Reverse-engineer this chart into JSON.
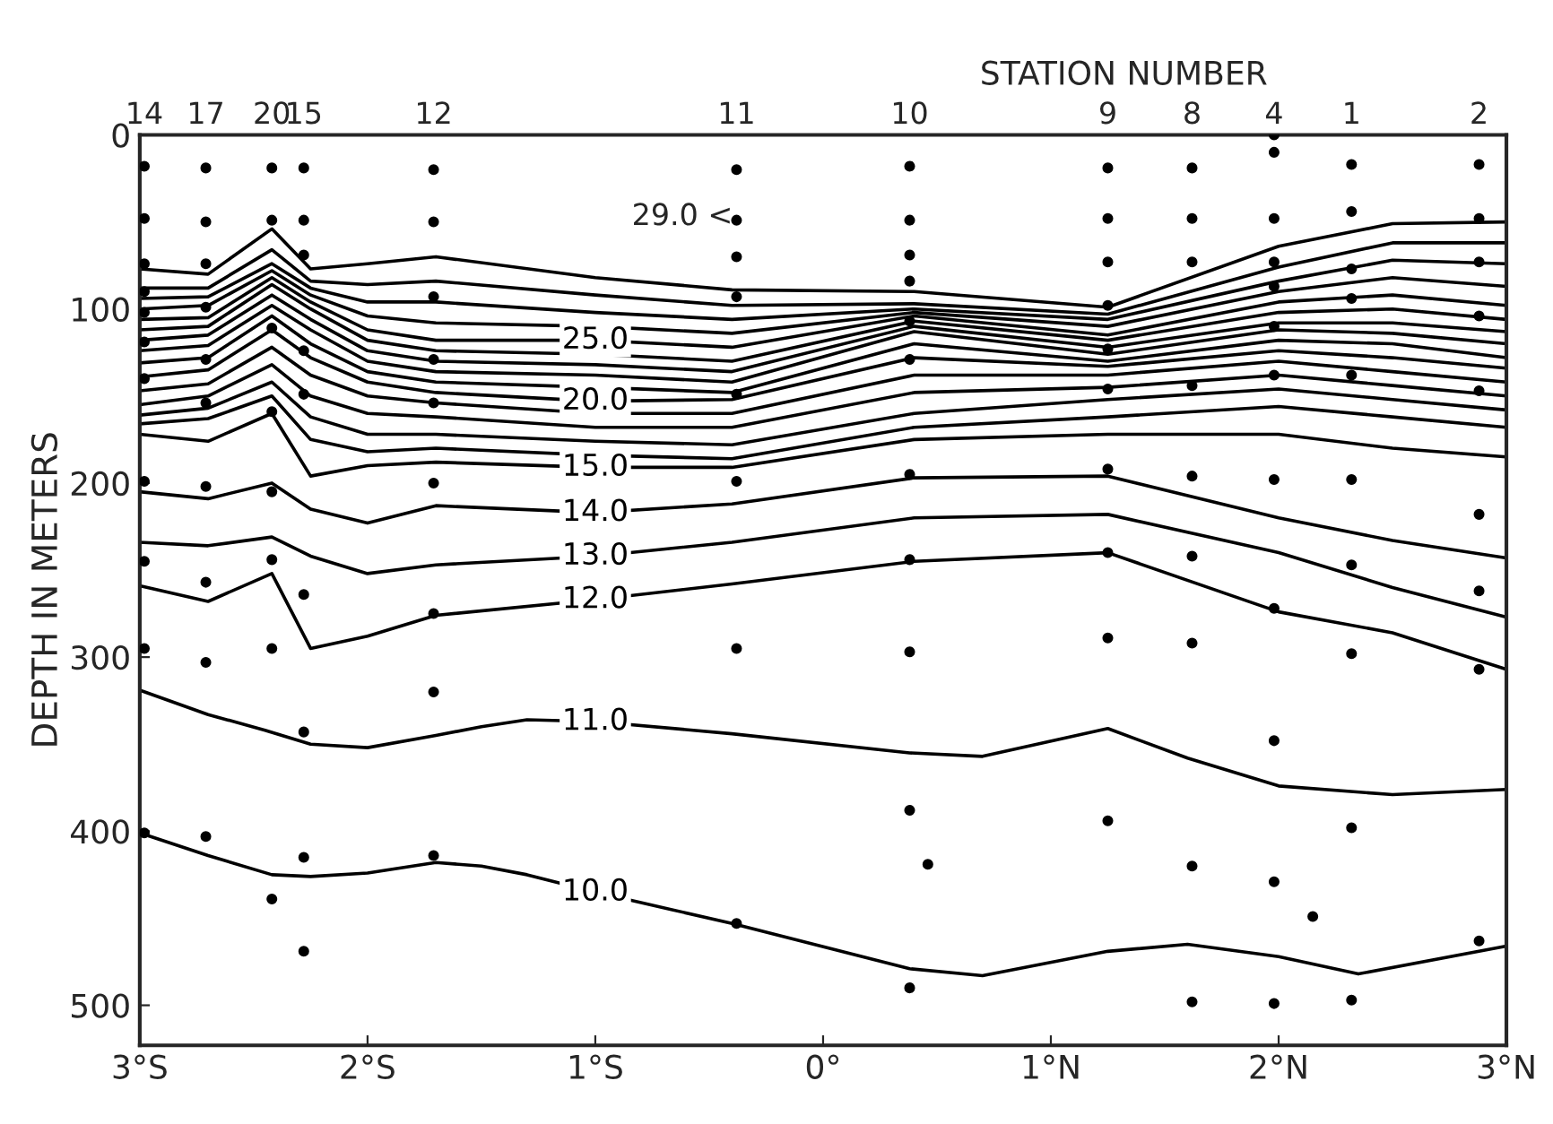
{
  "chart_data": {
    "type": "line",
    "xlabel": null,
    "ylabel": "DEPTH IN METERS",
    "x2label": "STATION NUMBER",
    "xlim": [
      -3,
      3
    ],
    "xticks": [
      {
        "value": -3,
        "label": "3°S"
      },
      {
        "value": -2,
        "label": "2°S"
      },
      {
        "value": -1,
        "label": "1°S"
      },
      {
        "value": 0,
        "label": "0°"
      },
      {
        "value": 1,
        "label": "1°N"
      },
      {
        "value": 2,
        "label": "2°N"
      },
      {
        "value": 3,
        "label": "3°N"
      }
    ],
    "ylim": [
      523,
      0
    ],
    "yticks": [
      0,
      100,
      200,
      300,
      400,
      500
    ],
    "x": [
      -3,
      -2.7,
      -2.42,
      -2.25,
      -2.0,
      -1.7,
      -1.0,
      -0.4,
      0.4,
      1.25,
      2.0,
      2.5,
      3.0
    ],
    "annotations": [
      "29.0 <"
    ],
    "series": [
      {
        "color": "#000000",
        "values": [
          77,
          80,
          54,
          77,
          74,
          70,
          82,
          89,
          90,
          99,
          64,
          51,
          50
        ]
      },
      {
        "color": "#000000",
        "values": [
          88,
          88,
          66,
          84,
          86,
          84,
          92,
          98,
          97,
          103,
          76,
          62,
          62
        ]
      },
      {
        "color": "#000000",
        "values": [
          94,
          93,
          74,
          88,
          96,
          96,
          102,
          106,
          100,
          106,
          84,
          72,
          74
        ]
      },
      {
        "color": "#000000",
        "values": [
          100,
          98,
          78,
          92,
          104,
          108,
          110,
          114,
          102,
          110,
          90,
          82,
          87
        ]
      },
      {
        "name": "25.0",
        "color": "#000000",
        "values": [
          106,
          105,
          82,
          96,
          112,
          118,
          118,
          122,
          104,
          115,
          96,
          92,
          98
        ]
      },
      {
        "color": "#000000",
        "values": [
          112,
          110,
          86,
          100,
          118,
          124,
          126,
          130,
          107,
          118,
          102,
          100,
          106
        ]
      },
      {
        "color": "#000000",
        "values": [
          118,
          115,
          92,
          106,
          124,
          130,
          132,
          136,
          110,
          122,
          108,
          108,
          113
        ]
      },
      {
        "color": "#000000",
        "values": [
          124,
          121,
          98,
          112,
          130,
          136,
          138,
          142,
          113,
          126,
          112,
          114,
          120
        ]
      },
      {
        "color": "#000000",
        "values": [
          131,
          128,
          104,
          120,
          136,
          142,
          145,
          148,
          120,
          130,
          118,
          120,
          128
        ]
      },
      {
        "name": "20.0",
        "color": "#000000",
        "values": [
          139,
          135,
          112,
          128,
          142,
          148,
          153,
          152,
          128,
          133,
          124,
          128,
          134
        ]
      },
      {
        "color": "#000000",
        "values": [
          147,
          143,
          122,
          138,
          150,
          154,
          160,
          160,
          138,
          138,
          130,
          136,
          142
        ]
      },
      {
        "color": "#000000",
        "values": [
          155,
          150,
          132,
          150,
          160,
          162,
          168,
          168,
          148,
          145,
          138,
          144,
          150
        ]
      },
      {
        "color": "#000000",
        "values": [
          161,
          157,
          142,
          162,
          172,
          172,
          176,
          178,
          160,
          152,
          146,
          152,
          158
        ]
      },
      {
        "color": "#000000",
        "values": [
          166,
          163,
          150,
          175,
          182,
          180,
          184,
          186,
          168,
          162,
          156,
          162,
          168
        ]
      },
      {
        "name": "15.0",
        "color": "#000000",
        "values": [
          172,
          176,
          160,
          196,
          190,
          188,
          191,
          191,
          175,
          172,
          172,
          180,
          185
        ]
      },
      {
        "name": "14.0",
        "color": "#000000",
        "values": [
          205,
          209,
          200,
          215,
          223,
          213,
          217,
          212,
          197,
          196,
          220,
          233,
          243
        ]
      },
      {
        "name": "13.0",
        "color": "#000000",
        "values": [
          234,
          236,
          231,
          242,
          252,
          247,
          242,
          234,
          220,
          218,
          240,
          260,
          277
        ]
      },
      {
        "name": "12.0",
        "color": "#000000",
        "values": [
          259,
          268,
          252,
          295,
          288,
          276,
          267,
          258,
          245,
          240,
          274,
          286,
          307
        ]
      },
      {
        "name": "11.0",
        "color": "#000000",
        "x": [
          -3,
          -2.7,
          -2.45,
          -2.25,
          -2.0,
          -1.7,
          -1.5,
          -1.3,
          -1.0,
          -0.4,
          0.38,
          0.7,
          1.25,
          1.6,
          2.0,
          2.5,
          3.0
        ],
        "values": [
          319,
          333,
          342,
          350,
          352,
          345,
          340,
          336,
          337,
          344,
          355,
          357,
          341,
          358,
          374,
          379,
          376
        ]
      },
      {
        "name": "10.0",
        "color": "#000000",
        "x": [
          -3,
          -2.7,
          -2.42,
          -2.25,
          -2.0,
          -1.7,
          -1.5,
          -1.3,
          -1.0,
          -0.4,
          0.38,
          0.7,
          1.25,
          1.6,
          2.0,
          2.35,
          3.0
        ],
        "values": [
          401,
          414,
          425,
          426,
          424,
          418,
          420,
          425,
          435,
          453,
          479,
          483,
          469,
          465,
          472,
          482,
          466
        ]
      },
      {
        "type": "scatter",
        "name": "14",
        "marker": "circle",
        "color": "#000000",
        "x": [
          -2.98,
          -2.98,
          -2.98,
          -2.98,
          -2.98,
          -2.98,
          -2.98,
          -2.98,
          -2.98,
          -2.98,
          -2.98
        ],
        "values": [
          18,
          48,
          74,
          90,
          102,
          119,
          140,
          199,
          245,
          295,
          401
        ]
      },
      {
        "type": "scatter",
        "name": "17",
        "marker": "circle",
        "color": "#000000",
        "x": [
          -2.71,
          -2.71,
          -2.71,
          -2.71,
          -2.71,
          -2.71,
          -2.71,
          -2.71,
          -2.71,
          -2.71
        ],
        "values": [
          19,
          50,
          74,
          99,
          129,
          154,
          202,
          257,
          303,
          403
        ]
      },
      {
        "type": "scatter",
        "name": "20",
        "marker": "circle",
        "color": "#000000",
        "x": [
          -2.42,
          -2.42,
          -2.42,
          -2.42,
          -2.42,
          -2.42,
          -2.42,
          -2.42
        ],
        "values": [
          19,
          49,
          111,
          159,
          205,
          244,
          295,
          439
        ]
      },
      {
        "type": "scatter",
        "name": "15",
        "marker": "circle",
        "color": "#000000",
        "x": [
          -2.28,
          -2.28,
          -2.28,
          -2.28,
          -2.28,
          -2.28,
          -2.28,
          -2.28,
          -2.28
        ],
        "values": [
          19,
          49,
          69,
          124,
          149,
          264,
          343,
          415,
          469
        ]
      },
      {
        "type": "scatter",
        "name": "12",
        "marker": "circle",
        "color": "#000000",
        "x": [
          -1.71,
          -1.71,
          -1.71,
          -1.71,
          -1.71,
          -1.71,
          -1.71,
          -1.71,
          -1.71
        ],
        "values": [
          20,
          50,
          93,
          129,
          154,
          200,
          275,
          320,
          414
        ]
      },
      {
        "type": "scatter",
        "name": "11",
        "marker": "circle",
        "color": "#000000",
        "x": [
          -0.38,
          -0.38,
          -0.38,
          -0.38,
          -0.38,
          -0.38,
          -0.38,
          -0.38
        ],
        "values": [
          20,
          49,
          70,
          93,
          149,
          199,
          295,
          453
        ]
      },
      {
        "type": "scatter",
        "name": "10",
        "marker": "circle",
        "color": "#000000",
        "x": [
          0.38,
          0.38,
          0.38,
          0.38,
          0.38,
          0.38,
          0.38,
          0.38,
          0.38,
          0.38,
          0.46,
          0.38
        ],
        "values": [
          18,
          49,
          69,
          84,
          107,
          129,
          195,
          244,
          297,
          388,
          419,
          490
        ]
      },
      {
        "type": "scatter",
        "name": "9",
        "marker": "circle",
        "color": "#000000",
        "x": [
          1.25,
          1.25,
          1.25,
          1.25,
          1.25,
          1.25,
          1.25,
          1.25,
          1.25,
          1.25
        ],
        "values": [
          19,
          48,
          73,
          98,
          123,
          146,
          192,
          240,
          289,
          394
        ]
      },
      {
        "type": "scatter",
        "name": "8",
        "marker": "circle",
        "color": "#000000",
        "x": [
          1.62,
          1.62,
          1.62,
          1.62,
          1.62,
          1.62,
          1.62,
          1.62,
          1.62
        ],
        "values": [
          19,
          48,
          73,
          144,
          196,
          242,
          292,
          420,
          498
        ]
      },
      {
        "type": "scatter",
        "name": "4",
        "marker": "circle",
        "color": "#000000",
        "x": [
          1.98,
          1.98,
          1.98,
          1.98,
          1.98,
          1.98,
          1.98,
          1.98,
          1.98,
          1.98,
          1.98,
          1.98
        ],
        "values": [
          0,
          10,
          48,
          73,
          87,
          110,
          138,
          198,
          272,
          348,
          429,
          499
        ]
      },
      {
        "type": "scatter",
        "name": "1",
        "marker": "circle",
        "color": "#000000",
        "x": [
          2.32,
          2.32,
          2.32,
          2.32,
          2.32,
          2.32,
          2.32,
          2.32,
          2.32,
          2.32
        ],
        "values": [
          17,
          44,
          77,
          94,
          138,
          198,
          247,
          298,
          398,
          497
        ]
      },
      {
        "type": "scatter",
        "name": "2",
        "marker": "circle",
        "color": "#000000",
        "x": [
          2.88,
          2.88,
          2.88,
          2.88,
          2.88,
          2.88,
          2.88,
          2.88,
          2.88
        ],
        "values": [
          17,
          48,
          73,
          104,
          147,
          218,
          262,
          307,
          463
        ]
      },
      {
        "type": "scatter",
        "marker": "circle",
        "color": "#000000",
        "x": [
          2.15
        ],
        "values": [
          449
        ]
      }
    ]
  }
}
